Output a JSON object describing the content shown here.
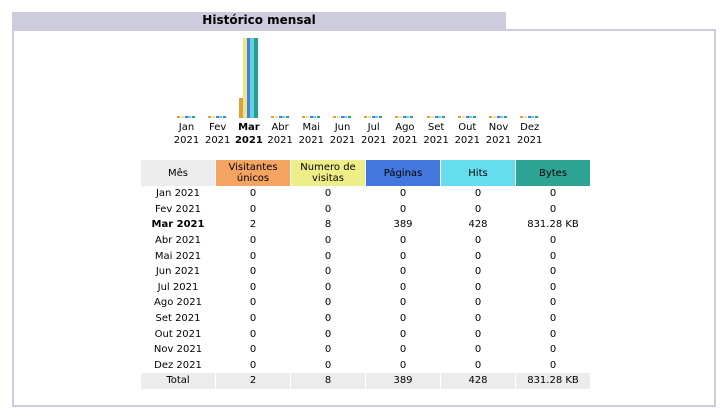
{
  "title": "Histórico mensal",
  "months": [
    {
      "m": "Jan",
      "y": "2021"
    },
    {
      "m": "Fev",
      "y": "2021"
    },
    {
      "m": "Mar",
      "y": "2021"
    },
    {
      "m": "Abr",
      "y": "2021"
    },
    {
      "m": "Mai",
      "y": "2021"
    },
    {
      "m": "Jun",
      "y": "2021"
    },
    {
      "m": "Jul",
      "y": "2021"
    },
    {
      "m": "Ago",
      "y": "2021"
    },
    {
      "m": "Set",
      "y": "2021"
    },
    {
      "m": "Out",
      "y": "2021"
    },
    {
      "m": "Nov",
      "y": "2021"
    },
    {
      "m": "Dez",
      "y": "2021"
    }
  ],
  "current_month_index": 2,
  "headers": {
    "month": "Mês",
    "visitors": "Visitantes únicos",
    "visits": "Numero de visitas",
    "pages": "Páginas",
    "hits": "Hits",
    "bytes": "Bytes"
  },
  "rows": [
    {
      "month": "Jan 2021",
      "visitors": "0",
      "visits": "0",
      "pages": "0",
      "hits": "0",
      "bytes": "0"
    },
    {
      "month": "Fev 2021",
      "visitors": "0",
      "visits": "0",
      "pages": "0",
      "hits": "0",
      "bytes": "0"
    },
    {
      "month": "Mar 2021",
      "visitors": "2",
      "visits": "8",
      "pages": "389",
      "hits": "428",
      "bytes": "831.28 KB"
    },
    {
      "month": "Abr 2021",
      "visitors": "0",
      "visits": "0",
      "pages": "0",
      "hits": "0",
      "bytes": "0"
    },
    {
      "month": "Mai 2021",
      "visitors": "0",
      "visits": "0",
      "pages": "0",
      "hits": "0",
      "bytes": "0"
    },
    {
      "month": "Jun 2021",
      "visitors": "0",
      "visits": "0",
      "pages": "0",
      "hits": "0",
      "bytes": "0"
    },
    {
      "month": "Jul 2021",
      "visitors": "0",
      "visits": "0",
      "pages": "0",
      "hits": "0",
      "bytes": "0"
    },
    {
      "month": "Ago 2021",
      "visitors": "0",
      "visits": "0",
      "pages": "0",
      "hits": "0",
      "bytes": "0"
    },
    {
      "month": "Set 2021",
      "visitors": "0",
      "visits": "0",
      "pages": "0",
      "hits": "0",
      "bytes": "0"
    },
    {
      "month": "Out 2021",
      "visitors": "0",
      "visits": "0",
      "pages": "0",
      "hits": "0",
      "bytes": "0"
    },
    {
      "month": "Nov 2021",
      "visitors": "0",
      "visits": "0",
      "pages": "0",
      "hits": "0",
      "bytes": "0"
    },
    {
      "month": "Dez 2021",
      "visitors": "0",
      "visits": "0",
      "pages": "0",
      "hits": "0",
      "bytes": "0"
    }
  ],
  "total": {
    "label": "Total",
    "visitors": "2",
    "visits": "8",
    "pages": "389",
    "hits": "428",
    "bytes": "831.28 KB"
  },
  "colors": {
    "visitors": "#d9a140",
    "visits": "#e6e68a",
    "pages": "#4b7bd9",
    "hits": "#5fd0e6",
    "bytes": "#2a9d8f",
    "header_bg": "#ccccdd"
  },
  "chart_data": {
    "type": "bar",
    "categories": [
      "Jan 2021",
      "Fev 2021",
      "Mar 2021",
      "Abr 2021",
      "Mai 2021",
      "Jun 2021",
      "Jul 2021",
      "Ago 2021",
      "Set 2021",
      "Out 2021",
      "Nov 2021",
      "Dez 2021"
    ],
    "series": [
      {
        "key": "visitors",
        "values": [
          0,
          0,
          2,
          0,
          0,
          0,
          0,
          0,
          0,
          0,
          0,
          0
        ]
      },
      {
        "key": "visits",
        "values": [
          0,
          0,
          8,
          0,
          0,
          0,
          0,
          0,
          0,
          0,
          0,
          0
        ]
      },
      {
        "key": "pages",
        "values": [
          0,
          0,
          389,
          0,
          0,
          0,
          0,
          0,
          0,
          0,
          0,
          0
        ]
      },
      {
        "key": "hits",
        "values": [
          0,
          0,
          428,
          0,
          0,
          0,
          0,
          0,
          0,
          0,
          0,
          0
        ]
      },
      {
        "key": "bytes",
        "values": [
          0,
          0,
          831.28,
          0,
          0,
          0,
          0,
          0,
          0,
          0,
          0,
          0
        ]
      }
    ],
    "legend": "none",
    "grid": false
  }
}
